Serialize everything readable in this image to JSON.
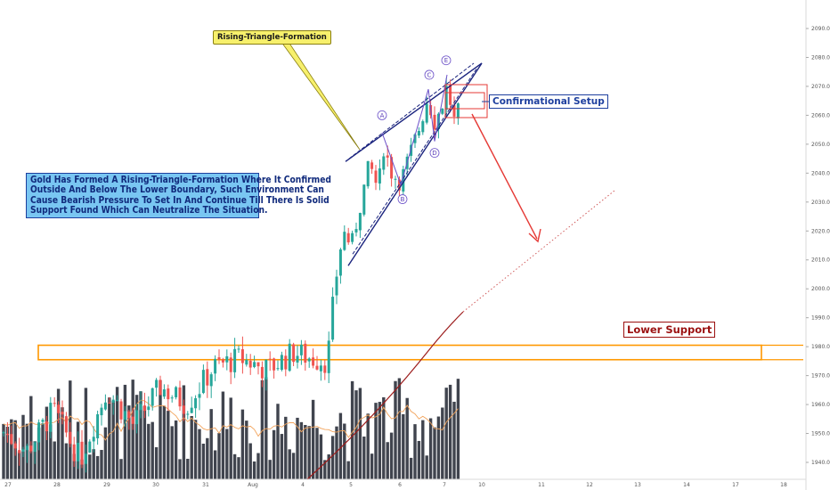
{
  "chart_data": {
    "type": "candlestick",
    "price_axis": {
      "ticks": [
        "1940.00",
        "1950.00",
        "1960.00",
        "1970.00",
        "1980.00",
        "1990.00",
        "2000.00",
        "2010.00",
        "2020.00",
        "2030.00",
        "2040.00",
        "2050.00",
        "2060.00",
        "2070.00",
        "2080.00",
        "2090.00"
      ],
      "range": [
        1935,
        2097
      ]
    },
    "time_axis": {
      "ticks": [
        "27",
        "28",
        "29",
        "30",
        "31",
        "Aug",
        "4",
        "5",
        "6",
        "7",
        "10",
        "11",
        "12",
        "13",
        "14",
        "17",
        "18"
      ]
    },
    "annotations": {
      "note": [
        "Gold Has Formed A Rising-Triangle-Formation Where It Confirmed",
        "Outside And Below The Lower Boundary, Such Environment Can",
        "Cause Bearish Pressure To Set In And Continue Till There Is Solid",
        "Support Found Which Can Neutralize The Situation."
      ],
      "formation_label": "Rising-Triangle-Formation",
      "confirm_label": "Confirmational Setup",
      "support_label": "Lower Support",
      "waves": [
        "A",
        "B",
        "C",
        "D",
        "E"
      ]
    },
    "support_zone": [
      1975.5,
      1980.5
    ],
    "colors": {
      "up": "#26a69a",
      "down": "#ef5350",
      "volume": "#363a45",
      "support": "#ff9800",
      "arrow": "#e53935",
      "triangle": "#1a237e",
      "ma": "#9c1c1c"
    }
  }
}
